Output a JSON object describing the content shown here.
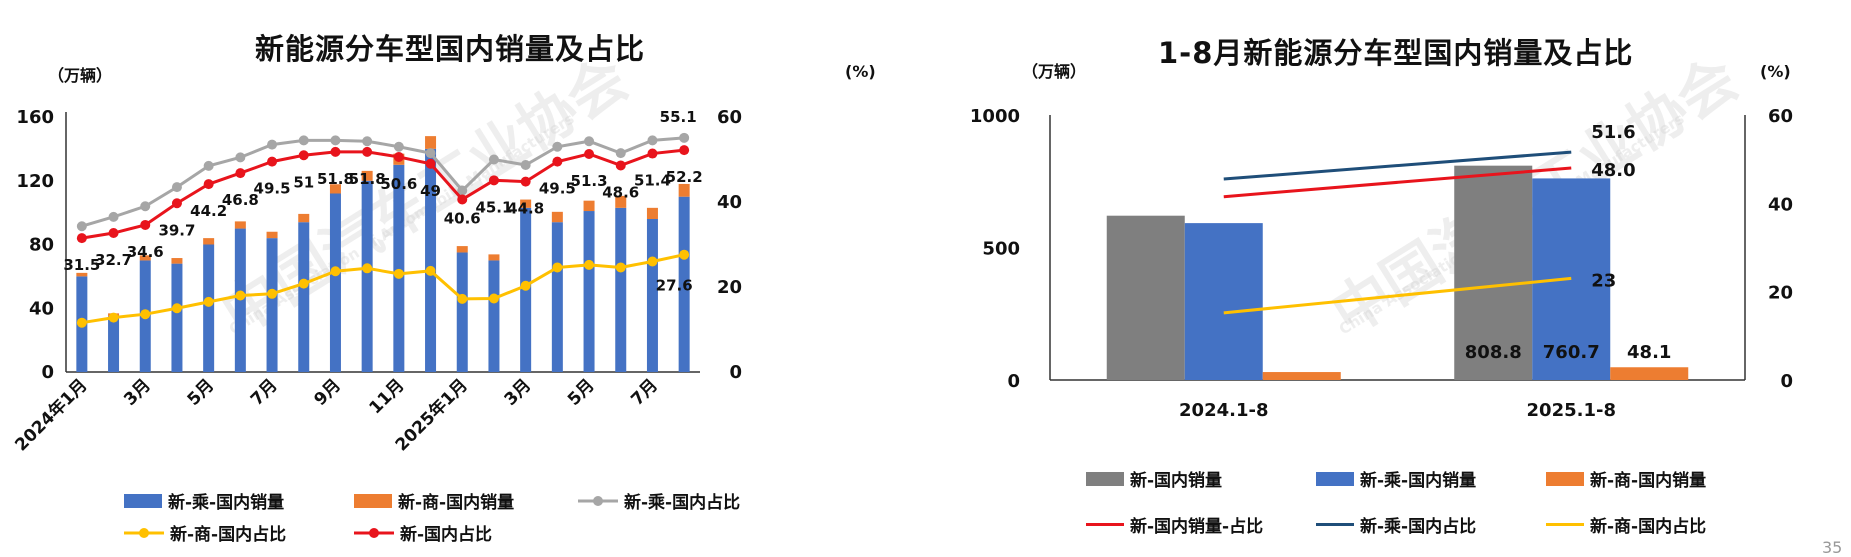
{
  "colors": {
    "grey": "#7f7f7f",
    "blue": "#4472c4",
    "orange": "#ed7d31",
    "yellow": "#ffc000",
    "red": "#e8141c",
    "navy": "#1f4e79",
    "linegrey": "#a6a6a6"
  },
  "left": {
    "title": "新能源分车型国内销量及占比",
    "unit_left": "（万辆）",
    "unit_right": "(%)",
    "legend": [
      "新-乘-国内销量",
      "新-商-国内销量",
      "新-乘-国内占比",
      "新-商-国内占比",
      "新-国内占比"
    ]
  },
  "right": {
    "title": "1-8月新能源分车型国内销量及占比",
    "unit_left": "（万辆）",
    "unit_right": "(%)",
    "legend": [
      "新-国内销量",
      "新-乘-国内销量",
      "新-商-国内销量",
      "新-国内销量-占比",
      "新-乘-国内占比",
      "新-商-国内占比"
    ]
  },
  "watermark": [
    "中国汽车工业协会",
    "China Association of Automobile Manufacturers"
  ],
  "page_number": "35",
  "chart_data": [
    {
      "type": "bar",
      "title": "新能源分车型国内销量及占比",
      "ylabel": "（万辆）",
      "y2label": "(%)",
      "ylim": [
        0,
        160
      ],
      "y2lim": [
        0,
        60
      ],
      "yticks": [
        0,
        40,
        80,
        120,
        160
      ],
      "y2ticks": [
        0,
        20,
        40,
        60
      ],
      "categories": [
        "2024年1月",
        "2月",
        "3月",
        "4月",
        "5月",
        "6月",
        "7月",
        "8月",
        "9月",
        "10月",
        "11月",
        "12月",
        "2025年1月",
        "2月",
        "3月",
        "4月",
        "5月",
        "6月",
        "7月",
        "8月"
      ],
      "tick_labels": [
        "2024年1月",
        "",
        "3月",
        "",
        "5月",
        "",
        "7月",
        "",
        "9月",
        "",
        "11月",
        "",
        "2025年1月",
        "",
        "3月",
        "",
        "5月",
        "",
        "7月",
        ""
      ],
      "series": [
        {
          "name": "新-乘-国内销量",
          "kind": "bar",
          "axis": "left",
          "values": [
            60,
            35,
            70,
            68,
            80,
            90,
            84,
            94,
            112,
            120,
            130,
            140,
            75,
            70,
            103,
            94,
            101,
            103,
            96,
            110
          ]
        },
        {
          "name": "新-商-国内销量",
          "kind": "bar",
          "axis": "left",
          "values": [
            2.2,
            1.8,
            3.2,
            3.5,
            4,
            4.5,
            4,
            5.2,
            5.8,
            6.2,
            7,
            8,
            4,
            3.8,
            5.2,
            6.5,
            6.5,
            7.5,
            7,
            8
          ]
        },
        {
          "name": "新-乘-国内占比",
          "kind": "line",
          "axis": "right",
          "values": [
            34.3,
            36.5,
            39,
            43.5,
            48.5,
            50.5,
            53.5,
            54.5,
            54.5,
            54.3,
            53,
            51.5,
            42.7,
            50,
            48.7,
            53,
            54.3,
            51.5,
            54.5,
            55.1
          ]
        },
        {
          "name": "新-商-国内占比",
          "kind": "line",
          "axis": "right",
          "values": [
            11.6,
            12.8,
            13.6,
            15,
            16.5,
            18,
            18.4,
            20.8,
            23.7,
            24.4,
            23.1,
            23.8,
            17.2,
            17.3,
            20.3,
            24.6,
            25.2,
            24.6,
            26,
            27.6
          ]
        },
        {
          "name": "新-国内占比",
          "kind": "line",
          "axis": "right",
          "values": [
            31.5,
            32.7,
            34.6,
            39.7,
            44.2,
            46.8,
            49.5,
            51,
            51.8,
            51.8,
            50.6,
            49,
            40.6,
            45.1,
            44.8,
            49.5,
            51.3,
            48.6,
            51.4,
            52.2
          ]
        }
      ],
      "data_labels": [
        "31.5",
        "32.7",
        "34.6",
        "39.7",
        "44.2",
        "46.8",
        "49.5",
        "51",
        "51.8",
        "51.8",
        "50.6",
        "49",
        "40.6",
        "45.1",
        "44.8",
        "49.5",
        "51.3",
        "48.6",
        "51.4",
        "52.2"
      ],
      "extra_labels": [
        "55.1",
        "27.6"
      ]
    },
    {
      "type": "bar",
      "title": "1-8月新能源分车型国内销量及占比",
      "ylabel": "（万辆）",
      "y2label": "(%)",
      "ylim": [
        0,
        1000
      ],
      "y2lim": [
        0,
        60
      ],
      "yticks": [
        0,
        500,
        1000
      ],
      "y2ticks": [
        0,
        20,
        40,
        60
      ],
      "categories": [
        "2024.1-8",
        "2025.1-8"
      ],
      "series": [
        {
          "name": "新-国内销量",
          "kind": "bar",
          "axis": "left",
          "values": [
            620,
            808.8
          ]
        },
        {
          "name": "新-乘-国内销量",
          "kind": "bar",
          "axis": "left",
          "values": [
            592,
            760.7
          ]
        },
        {
          "name": "新-商-国内销量",
          "kind": "bar",
          "axis": "left",
          "values": [
            30,
            48.1
          ]
        },
        {
          "name": "新-国内销量-占比",
          "kind": "line",
          "axis": "right",
          "values": [
            41.5,
            48.0
          ]
        },
        {
          "name": "新-乘-国内占比",
          "kind": "line",
          "axis": "right",
          "values": [
            45.5,
            51.6
          ]
        },
        {
          "name": "新-商-国内占比",
          "kind": "line",
          "axis": "right",
          "values": [
            15.2,
            23
          ]
        }
      ],
      "data_labels": [
        "808.8",
        "760.7",
        "48.1",
        "51.6",
        "48.0",
        "23"
      ]
    }
  ]
}
